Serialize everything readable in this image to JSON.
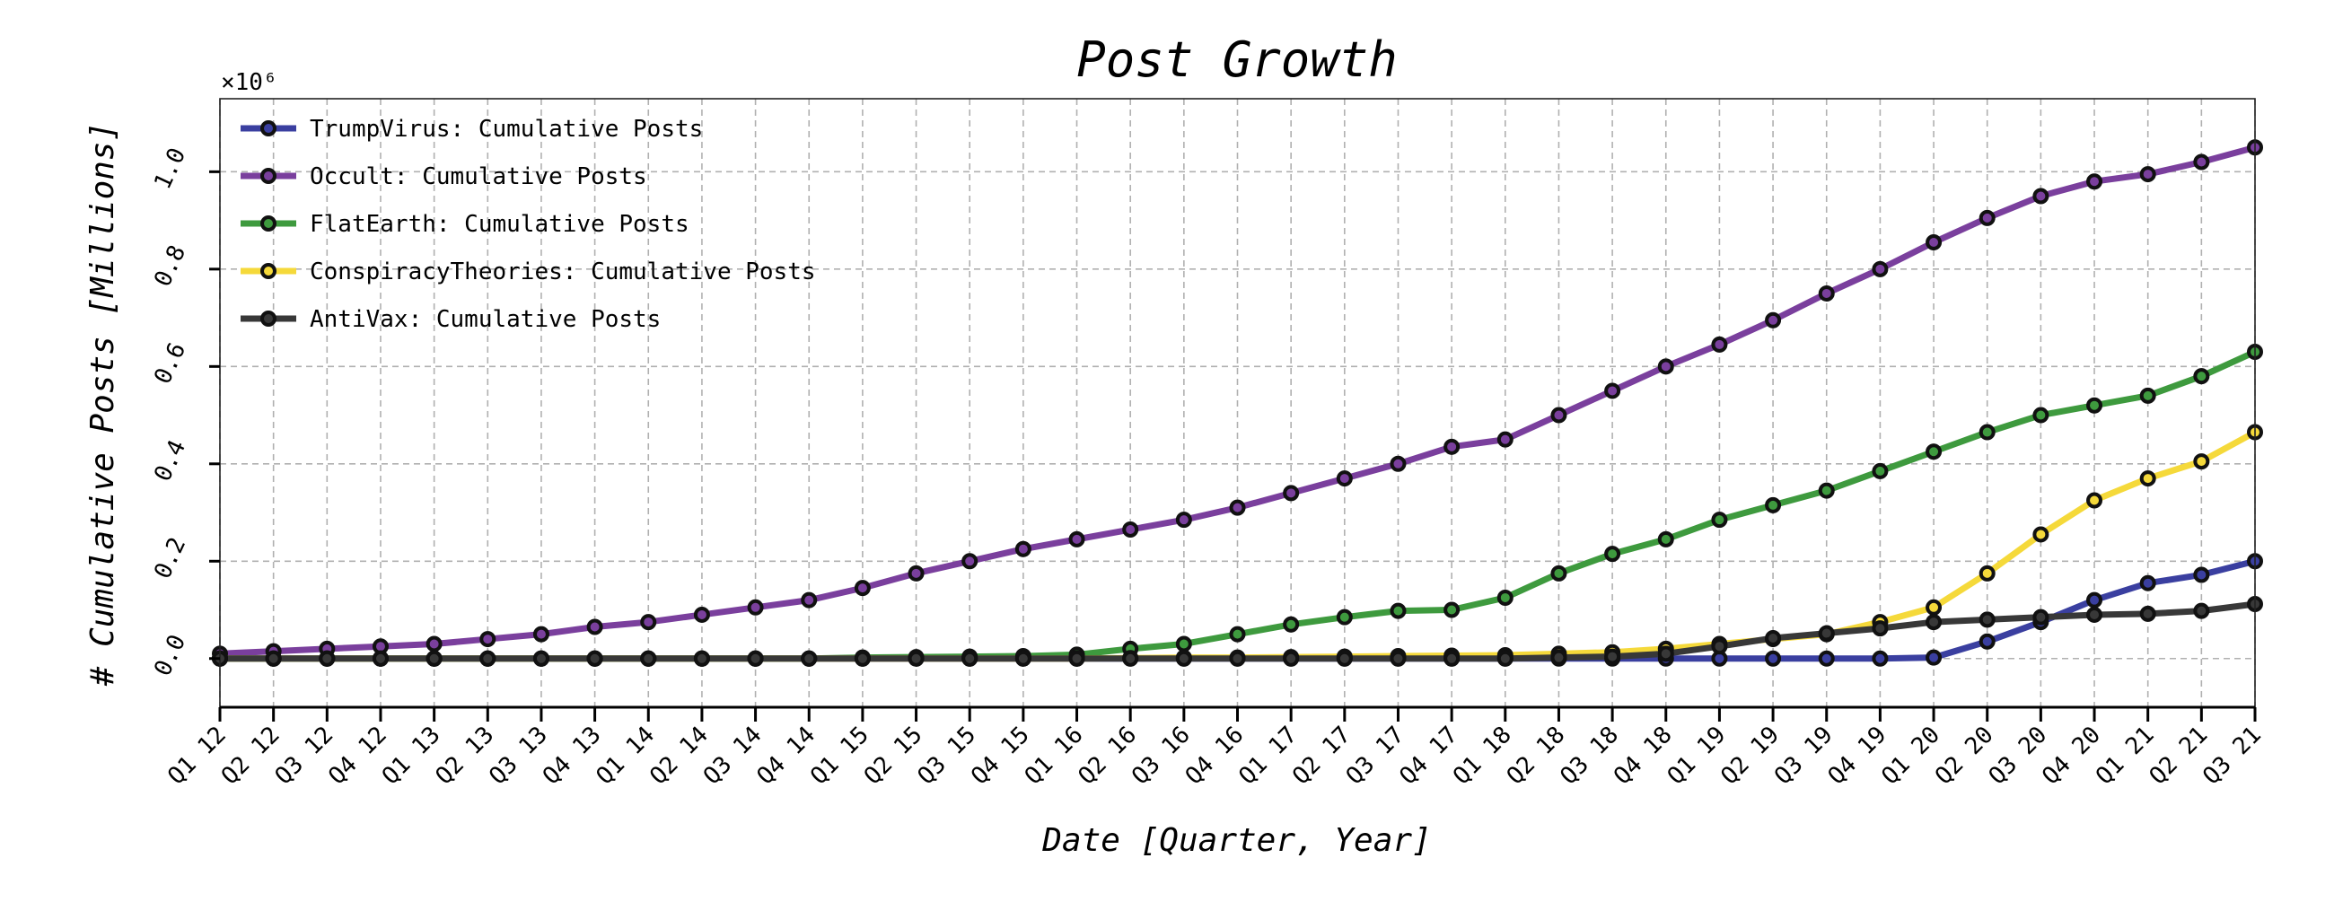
{
  "chart_data": {
    "type": "line",
    "title": "Post Growth",
    "xlabel": "Date [Quarter, Year]",
    "ylabel": "# Cumulative Posts [Millions]",
    "y_multiplier_label": "×10⁶",
    "ylim": [
      -0.1,
      1.15
    ],
    "yticks": [
      0.0,
      0.2,
      0.4,
      0.6,
      0.8,
      1.0
    ],
    "ytick_labels": [
      "0.0",
      "0.2",
      "0.4",
      "0.6",
      "0.8",
      "1.0"
    ],
    "grid": true,
    "legend_position": "top-left",
    "categories": [
      "Q1 12",
      "Q2 12",
      "Q3 12",
      "Q4 12",
      "Q1 13",
      "Q2 13",
      "Q3 13",
      "Q4 13",
      "Q1 14",
      "Q2 14",
      "Q3 14",
      "Q4 14",
      "Q1 15",
      "Q2 15",
      "Q3 15",
      "Q4 15",
      "Q1 16",
      "Q2 16",
      "Q3 16",
      "Q4 16",
      "Q1 17",
      "Q2 17",
      "Q3 17",
      "Q4 17",
      "Q1 18",
      "Q2 18",
      "Q3 18",
      "Q4 18",
      "Q1 19",
      "Q2 19",
      "Q3 19",
      "Q4 19",
      "Q1 20",
      "Q2 20",
      "Q3 20",
      "Q4 20",
      "Q1 21",
      "Q2 21",
      "Q3 21"
    ],
    "series": [
      {
        "name": "TrumpVirus: Cumulative Posts",
        "color": "#3a3fa0",
        "values": [
          0,
          0,
          0,
          0,
          0,
          0,
          0,
          0,
          0,
          0,
          0,
          0,
          0,
          0,
          0,
          0,
          0,
          0,
          0,
          0,
          0,
          0,
          0,
          0,
          0,
          0,
          0,
          0,
          0,
          0,
          0,
          0,
          0.002,
          0.035,
          0.075,
          0.12,
          0.155,
          0.172,
          0.2
        ]
      },
      {
        "name": "Occult: Cumulative Posts",
        "color": "#7a3f9d",
        "values": [
          0.01,
          0.015,
          0.02,
          0.025,
          0.03,
          0.04,
          0.05,
          0.065,
          0.075,
          0.09,
          0.105,
          0.12,
          0.145,
          0.175,
          0.2,
          0.225,
          0.245,
          0.265,
          0.285,
          0.31,
          0.34,
          0.37,
          0.4,
          0.435,
          0.45,
          0.5,
          0.55,
          0.6,
          0.645,
          0.695,
          0.75,
          0.8,
          0.855,
          0.905,
          0.95,
          0.98,
          0.995,
          1.02,
          1.05
        ]
      },
      {
        "name": "FlatEarth: Cumulative Posts",
        "color": "#3e9a3e",
        "values": [
          0,
          0,
          0,
          0,
          0,
          0,
          0,
          0,
          0,
          0,
          0,
          0,
          0.002,
          0.003,
          0.004,
          0.005,
          0.008,
          0.02,
          0.03,
          0.05,
          0.07,
          0.085,
          0.098,
          0.1,
          0.125,
          0.175,
          0.215,
          0.245,
          0.285,
          0.315,
          0.345,
          0.385,
          0.425,
          0.465,
          0.5,
          0.52,
          0.54,
          0.58,
          0.63
        ]
      },
      {
        "name": "ConspiracyTheories: Cumulative Posts",
        "color": "#f5d93a",
        "values": [
          0,
          0,
          0,
          0,
          0,
          0,
          0,
          0,
          0,
          0,
          0,
          0,
          0,
          0,
          0,
          0,
          0,
          0.001,
          0.002,
          0.002,
          0.003,
          0.004,
          0.005,
          0.006,
          0.007,
          0.01,
          0.013,
          0.02,
          0.03,
          0.04,
          0.05,
          0.075,
          0.105,
          0.175,
          0.255,
          0.325,
          0.37,
          0.405,
          0.465
        ]
      },
      {
        "name": "AntiVax: Cumulative Posts",
        "color": "#383838",
        "values": [
          0,
          0,
          0,
          0,
          0,
          0,
          0,
          0,
          0,
          0,
          0,
          0,
          0,
          0,
          0,
          0,
          0,
          0,
          0,
          0,
          0,
          0,
          0,
          0,
          0,
          0.002,
          0.004,
          0.01,
          0.025,
          0.042,
          0.052,
          0.062,
          0.075,
          0.08,
          0.085,
          0.09,
          0.092,
          0.098,
          0.112
        ]
      }
    ]
  }
}
